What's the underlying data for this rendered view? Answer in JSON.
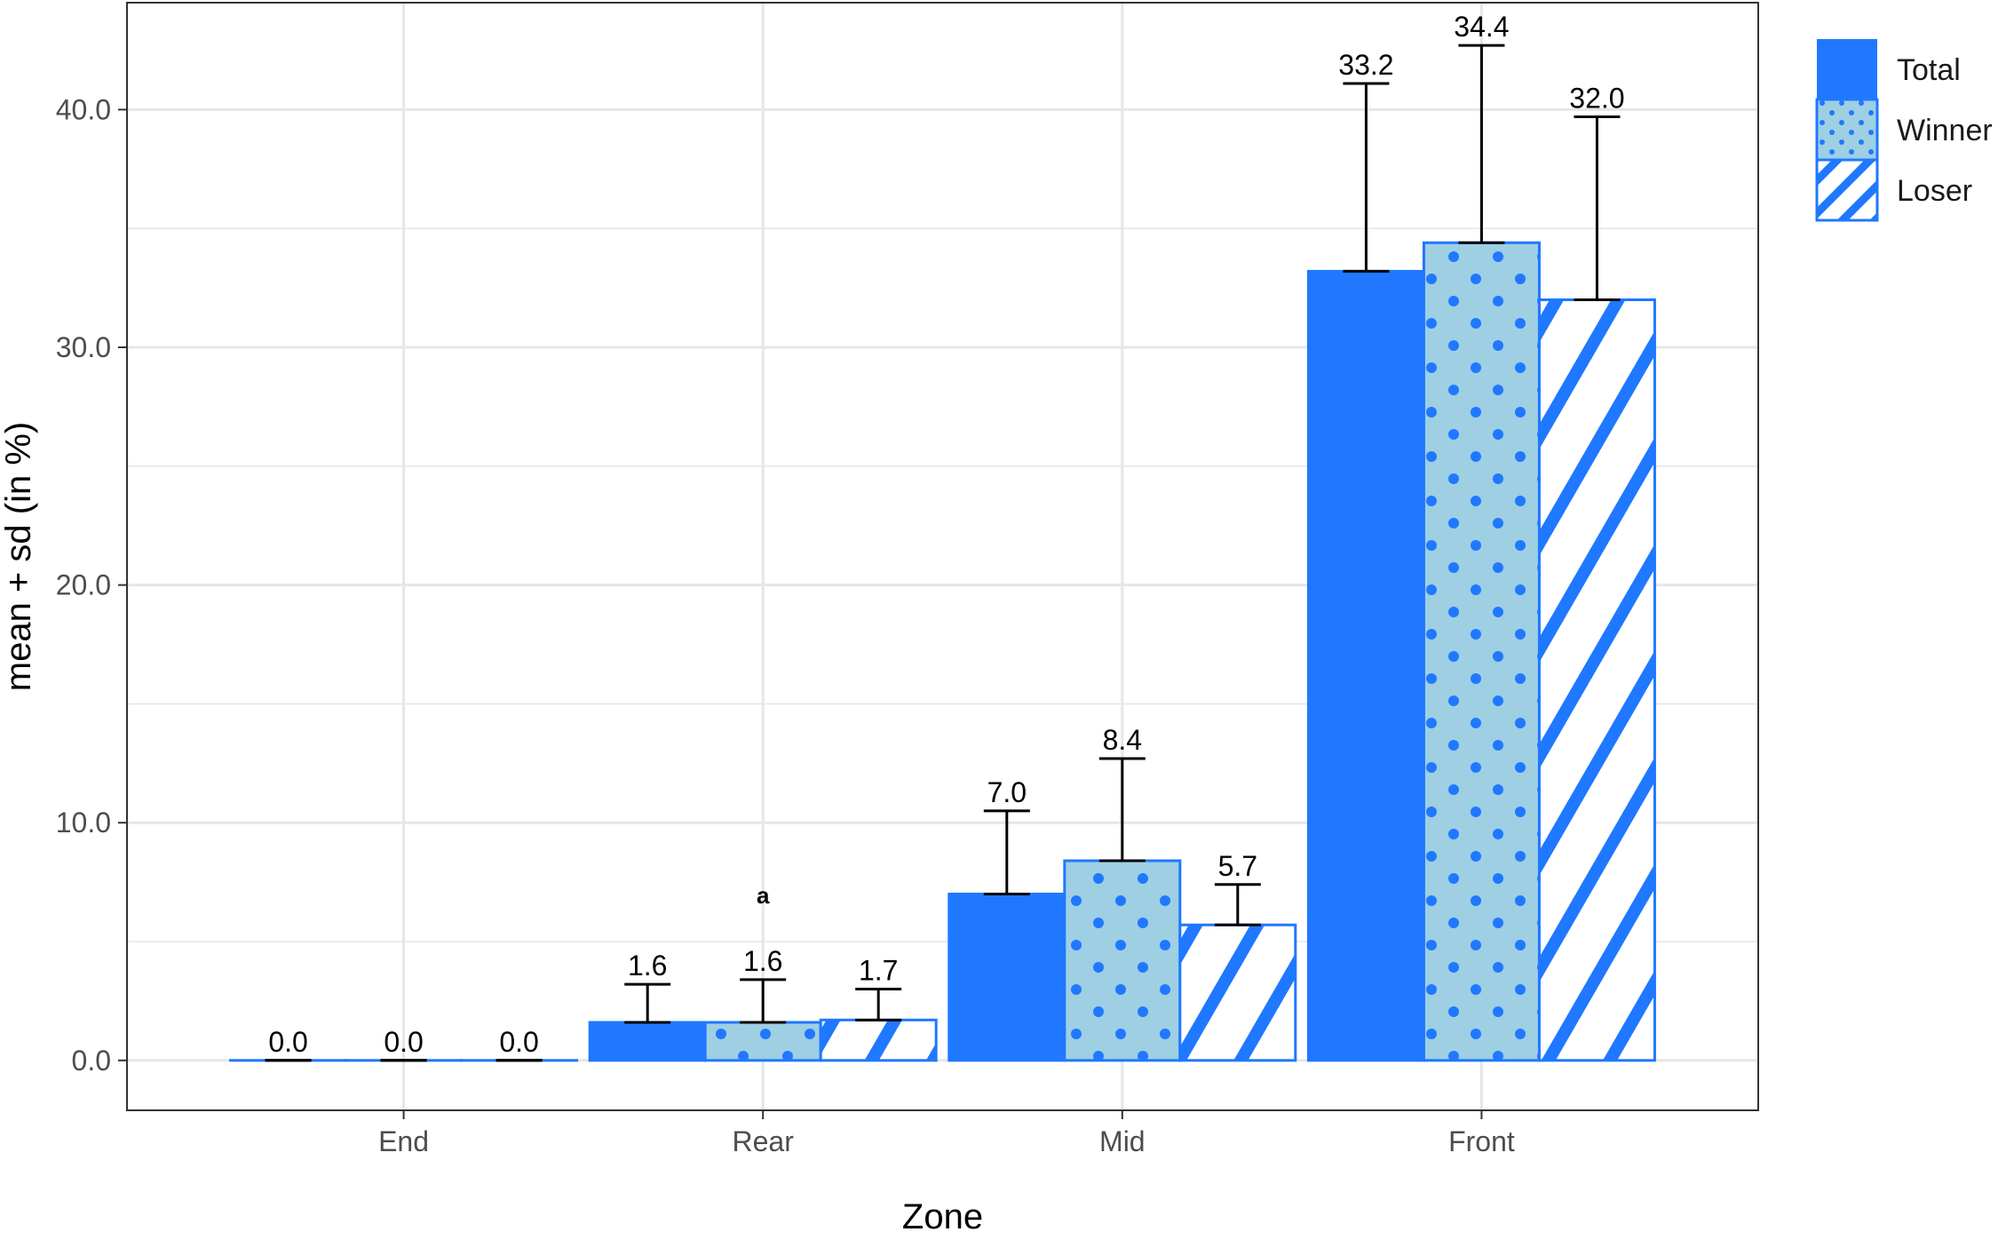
{
  "chart_data": {
    "type": "bar",
    "xlabel": "Zone",
    "ylabel": "mean + sd (in %)",
    "categories": [
      "End",
      "Rear",
      "Mid",
      "Front"
    ],
    "ylim": [
      -2.1,
      44.5
    ],
    "yticks": [
      0,
      10,
      20,
      30,
      40
    ],
    "ytick_labels": [
      "0.0",
      "10.0",
      "20.0",
      "30.0",
      "40.0"
    ],
    "grid": true,
    "legend_position": "right",
    "series": [
      {
        "name": "Total",
        "fill": "solid",
        "values": [
          0.0,
          1.6,
          7.0,
          33.2
        ],
        "sd": [
          0.0,
          1.6,
          3.5,
          7.9
        ],
        "labels": [
          "0.0",
          "1.6",
          "7.0",
          "33.2"
        ]
      },
      {
        "name": "Winner",
        "fill": "dots",
        "values": [
          0.0,
          1.6,
          8.4,
          34.4
        ],
        "sd": [
          0.0,
          1.8,
          4.3,
          8.3
        ],
        "labels": [
          "0.0",
          "1.6",
          "8.4",
          "34.4"
        ]
      },
      {
        "name": "Loser",
        "fill": "stripes",
        "values": [
          0.0,
          1.7,
          5.7,
          32.0
        ],
        "sd": [
          0.0,
          1.3,
          1.7,
          7.7
        ],
        "labels": [
          "0.0",
          "1.7",
          "5.7",
          "32.0"
        ]
      }
    ],
    "annotations": [
      {
        "text": "a",
        "category": "Rear"
      }
    ],
    "colors": {
      "bar": "#1f78ff",
      "winner_fill": "#9ecfe3",
      "loser_fill": "#ffffff",
      "grid": "#e6e6e6",
      "frame": "#333333"
    }
  }
}
